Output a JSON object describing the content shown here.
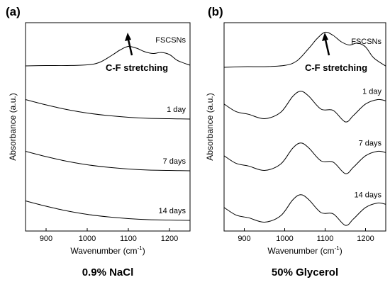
{
  "chart_data": [
    {
      "type": "line",
      "panel_label": "(a)",
      "xlabel_main": "Wavenumber (cm",
      "xlabel_sup": "-1",
      "xlabel_end": ")",
      "ylabel": "Absorbance (a.u.)",
      "xlim": [
        850,
        1250
      ],
      "xticks": [
        "900",
        "1000",
        "1100",
        "1200"
      ],
      "caption": "0.9% NaCl",
      "annotation": "C-F stretching",
      "annotation_x": 1100,
      "series": [
        {
          "name": "FSCSNs",
          "x": [
            850,
            900,
            950,
            1000,
            1030,
            1060,
            1080,
            1100,
            1120,
            1140,
            1160,
            1180,
            1200,
            1220,
            1250
          ],
          "y": [
            0.0,
            0.01,
            0.01,
            0.03,
            0.1,
            0.3,
            0.45,
            0.55,
            0.5,
            0.4,
            0.35,
            0.38,
            0.32,
            0.15,
            0.02
          ]
        },
        {
          "name": "1 day",
          "x": [
            850,
            900,
            950,
            1000,
            1050,
            1100,
            1150,
            1200,
            1250
          ],
          "y": [
            0.55,
            0.4,
            0.27,
            0.17,
            0.1,
            0.05,
            0.02,
            0.01,
            0.0
          ]
        },
        {
          "name": "7 days",
          "x": [
            850,
            900,
            950,
            1000,
            1050,
            1100,
            1150,
            1200,
            1250
          ],
          "y": [
            0.55,
            0.4,
            0.27,
            0.17,
            0.1,
            0.05,
            0.02,
            0.01,
            0.0
          ]
        },
        {
          "name": "14 days",
          "x": [
            850,
            900,
            950,
            1000,
            1050,
            1100,
            1150,
            1200,
            1250
          ],
          "y": [
            0.55,
            0.4,
            0.27,
            0.17,
            0.1,
            0.05,
            0.02,
            0.01,
            0.0
          ]
        }
      ]
    },
    {
      "type": "line",
      "panel_label": "(b)",
      "xlabel_main": "Wavenumber (cm",
      "xlabel_sup": "-1",
      "xlabel_end": ")",
      "ylabel": "Absorbance (a.u.)",
      "xlim": [
        850,
        1250
      ],
      "xticks": [
        "900",
        "1000",
        "1100",
        "1200"
      ],
      "caption": "50% Glycerol",
      "annotation": "C-F stretching",
      "annotation_x": 1100,
      "series": [
        {
          "name": "FSCSNs",
          "x": [
            850,
            900,
            950,
            1000,
            1030,
            1060,
            1080,
            1100,
            1120,
            1140,
            1160,
            1180,
            1200,
            1220,
            1250
          ],
          "y": [
            0.0,
            0.01,
            0.01,
            0.03,
            0.1,
            0.3,
            0.45,
            0.55,
            0.5,
            0.4,
            0.35,
            0.38,
            0.32,
            0.15,
            0.02
          ]
        },
        {
          "name": "1 day",
          "x": [
            850,
            880,
            910,
            950,
            990,
            1020,
            1040,
            1060,
            1090,
            1120,
            1150,
            1170,
            1200,
            1230,
            1250
          ],
          "y": [
            0.28,
            0.16,
            0.12,
            0.05,
            0.15,
            0.4,
            0.48,
            0.4,
            0.2,
            0.18,
            0.0,
            0.1,
            0.28,
            0.35,
            0.33
          ]
        },
        {
          "name": "7 days",
          "x": [
            850,
            880,
            910,
            950,
            990,
            1020,
            1040,
            1060,
            1090,
            1120,
            1150,
            1170,
            1200,
            1230,
            1250
          ],
          "y": [
            0.28,
            0.16,
            0.12,
            0.05,
            0.15,
            0.4,
            0.48,
            0.4,
            0.2,
            0.18,
            0.0,
            0.1,
            0.28,
            0.35,
            0.33
          ]
        },
        {
          "name": "14 days",
          "x": [
            850,
            880,
            910,
            950,
            990,
            1020,
            1040,
            1060,
            1090,
            1120,
            1150,
            1170,
            1200,
            1230,
            1250
          ],
          "y": [
            0.28,
            0.16,
            0.12,
            0.05,
            0.15,
            0.4,
            0.48,
            0.4,
            0.2,
            0.18,
            0.0,
            0.1,
            0.28,
            0.35,
            0.33
          ]
        }
      ]
    }
  ]
}
